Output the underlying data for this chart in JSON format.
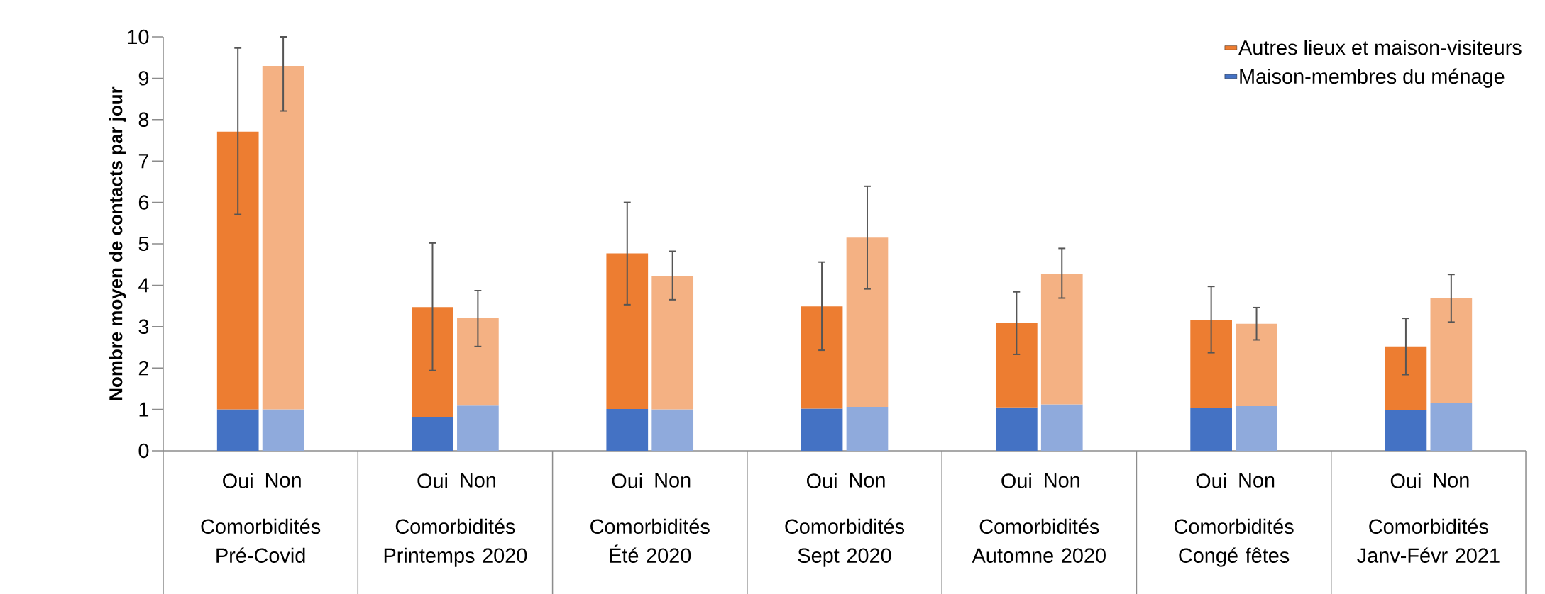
{
  "chart_data": {
    "type": "bar",
    "stacked": true,
    "ylabel": "Nombre moyen de contacts par jour",
    "categories": [
      "Oui",
      "Non",
      "Oui",
      "Non",
      "Oui",
      "Non",
      "Oui",
      "Non",
      "Oui",
      "Non",
      "Oui",
      "Non",
      "Oui",
      "Non"
    ],
    "annotations": [
      "Comorbidités Pré-Covid",
      "Comorbidités Printemps 2020",
      "Comorbidités Été 2020",
      "Comorbidités Sept 2020",
      "Comorbidités Automne 2020",
      "Comorbidités Congé fêtes",
      "Comorbidités Janv-Févr 2021"
    ],
    "series": [
      {
        "name": "Maison-membres du ménage",
        "color": "#4472c4",
        "colors": [
          "#4472c4",
          "#8faadc",
          "#4472c4",
          "#8faadc",
          "#4472c4",
          "#8faadc",
          "#4472c4",
          "#8faadc",
          "#4472c4",
          "#8faadc",
          "#4472c4",
          "#8faadc",
          "#4472c4",
          "#8faadc"
        ],
        "values": [
          1.0,
          1.0,
          0.82,
          1.09,
          1.01,
          1.0,
          1.02,
          1.06,
          1.05,
          1.12,
          1.04,
          1.08,
          0.99,
          1.15
        ]
      },
      {
        "name": "Autres lieux et maison-visiteurs",
        "color": "#ed7d31",
        "colors": [
          "#ed7d31",
          "#f4b183",
          "#ed7d31",
          "#f4b183",
          "#ed7d31",
          "#f4b183",
          "#ed7d31",
          "#f4b183",
          "#ed7d31",
          "#f4b183",
          "#ed7d31",
          "#f4b183",
          "#ed7d31",
          "#f4b183"
        ],
        "values": [
          6.71,
          8.3,
          2.65,
          2.11,
          3.76,
          3.23,
          2.47,
          4.09,
          2.04,
          3.16,
          2.12,
          1.99,
          1.53,
          2.54
        ],
        "errors": [
          [
            5.71,
            9.73
          ],
          [
            8.21,
            10.0
          ],
          [
            1.94,
            5.02
          ],
          [
            2.52,
            3.87
          ],
          [
            3.53,
            6.0
          ],
          [
            3.65,
            4.82
          ],
          [
            2.43,
            4.56
          ],
          [
            3.91,
            6.39
          ],
          [
            2.33,
            3.84
          ],
          [
            3.69,
            4.89
          ],
          [
            2.37,
            3.97
          ],
          [
            2.68,
            3.46
          ],
          [
            1.84,
            3.2
          ],
          [
            3.11,
            4.26
          ]
        ]
      }
    ],
    "ylim": [
      0,
      10
    ],
    "yticks": [
      0,
      1,
      2,
      3,
      4,
      5,
      6,
      7,
      8,
      9,
      10
    ],
    "legend": "top right"
  }
}
